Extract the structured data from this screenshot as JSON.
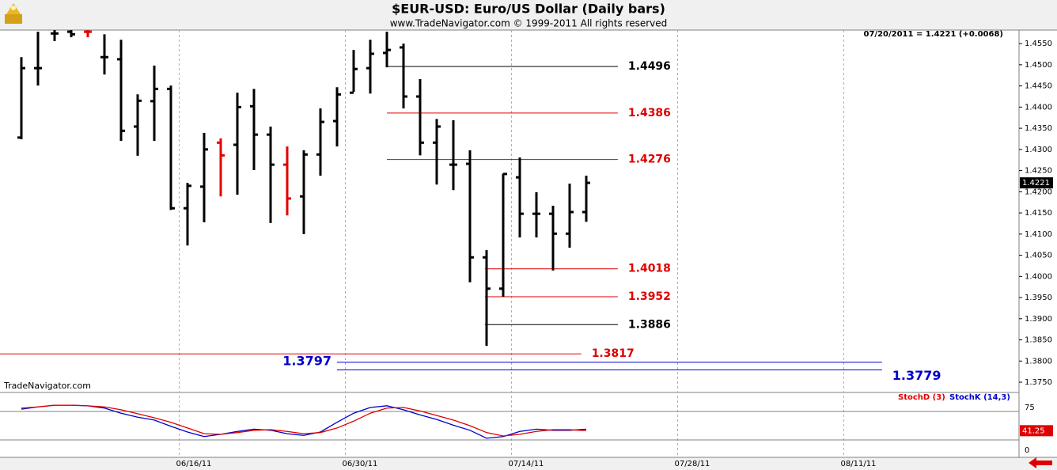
{
  "chart_data": [
    {
      "type": "ohlc",
      "title": "$EUR-USD:  Euro/US Dollar  (Daily bars)",
      "subtitle": "www.TradeNavigator.com © 1999-2011 All rights reserved",
      "info": "07/20/2011 = 1.4221 (+0.0068)",
      "watermark": "TradeNavigator.com",
      "categories": [
        null,
        null,
        null,
        null,
        null,
        null,
        null,
        null,
        null,
        null,
        null,
        null,
        null,
        null,
        null,
        null,
        null,
        null,
        null,
        null,
        null,
        null,
        null,
        null,
        null,
        null,
        null,
        null,
        null,
        null,
        null,
        null,
        null,
        null,
        null
      ],
      "open": [
        1.4328,
        1.4492,
        1.4574,
        1.4578,
        1.4578,
        1.4518,
        1.4513,
        1.4354,
        1.4414,
        1.4443,
        1.4161,
        1.4212,
        1.4316,
        1.4311,
        1.4402,
        1.4335,
        1.4264,
        1.4189,
        1.4288,
        1.4367,
        1.4434,
        1.4492,
        1.4528,
        1.4541,
        1.4425,
        1.4316,
        1.4264,
        1.4266,
        1.4045,
        1.3971,
        1.4234,
        1.4148,
        1.4148,
        1.4101,
        1.4152
      ],
      "high": [
        1.4518,
        1.4578,
        1.4582,
        1.4582,
        1.4582,
        1.4572,
        1.4559,
        1.443,
        1.4498,
        1.4451,
        1.4221,
        1.4339,
        1.4326,
        1.4434,
        1.4443,
        1.4354,
        1.4307,
        1.4298,
        1.4397,
        1.4447,
        1.4535,
        1.4559,
        1.4578,
        1.455,
        1.4466,
        1.4372,
        1.4369,
        1.4298,
        1.4062,
        1.4243,
        1.4281,
        1.4199,
        1.4167,
        1.4219,
        1.4238
      ],
      "low": [
        1.4324,
        1.4451,
        1.4556,
        1.4565,
        1.4565,
        1.4477,
        1.432,
        1.4285,
        1.432,
        1.4157,
        1.4073,
        1.4128,
        1.4189,
        1.4193,
        1.4251,
        1.4126,
        1.4144,
        1.41,
        1.4238,
        1.4307,
        1.4436,
        1.4432,
        1.4494,
        1.4397,
        1.4286,
        1.4217,
        1.4204,
        1.3986,
        1.3836,
        1.3952,
        1.4092,
        1.4092,
        1.4014,
        1.4068,
        1.4129
      ],
      "close": [
        1.4492,
        1.4492,
        1.4574,
        1.4572,
        1.4578,
        1.4518,
        1.4344,
        1.4415,
        1.4443,
        1.4161,
        1.4214,
        1.43,
        1.4286,
        1.44,
        1.4335,
        1.4264,
        1.4184,
        1.4288,
        1.4365,
        1.443,
        1.449,
        1.4526,
        1.4535,
        1.4425,
        1.4316,
        1.4354,
        1.4264,
        1.4045,
        1.3971,
        1.4242,
        1.4148,
        1.4148,
        1.4101,
        1.4152,
        1.4221
      ],
      "bar_colors": [
        "#000000",
        "#000000",
        "#000000",
        "#000000",
        "#e00000",
        "#000000",
        "#000000",
        "#000000",
        "#000000",
        "#000000",
        "#000000",
        "#000000",
        "#e00000",
        "#000000",
        "#000000",
        "#000000",
        "#e00000",
        "#000000",
        "#000000",
        "#000000",
        "#000000",
        "#000000",
        "#000000",
        "#000000",
        "#000000",
        "#000000",
        "#000000",
        "#000000",
        "#000000",
        "#000000",
        "#000000",
        "#000000",
        "#000000",
        "#000000",
        "#000000"
      ],
      "levels": [
        {
          "value": 1.4496,
          "color": "#000000",
          "from": 22,
          "to": 35.9,
          "label_side": "right"
        },
        {
          "value": 1.4386,
          "color": "#e00000",
          "from": 22,
          "to": 35.9,
          "label_side": "right"
        },
        {
          "value": 1.4276,
          "color": "#e00000",
          "from": 22,
          "to": 35.9,
          "label_side": "right"
        },
        {
          "value": 1.4018,
          "color": "#e00000",
          "from": 27.9,
          "to": 35.9,
          "label_side": "right"
        },
        {
          "value": 1.3952,
          "color": "#e00000",
          "from": 27.9,
          "to": 35.9,
          "label_side": "right"
        },
        {
          "value": 1.3886,
          "color": "#000000",
          "from": 27.9,
          "to": 35.9,
          "label_side": "right"
        },
        {
          "value": 1.3817,
          "color": "#e00000",
          "from": -1.3,
          "to": 33.7,
          "label_side": "right"
        },
        {
          "value": 1.3797,
          "color": "#0000cc",
          "from": 19,
          "to": 51.8,
          "label_side": "left"
        },
        {
          "value": 1.3779,
          "color": "#0000cc",
          "from": 19,
          "to": 51.8,
          "label_side": "right"
        }
      ],
      "xticks": [
        {
          "value": 9.5,
          "label": "06/16/11"
        },
        {
          "value": 19.5,
          "label": "06/30/11"
        },
        {
          "value": 29.5,
          "label": "07/14/11"
        },
        {
          "value": 39.5,
          "label": "07/28/11"
        },
        {
          "value": 49.5,
          "label": "08/11/11"
        }
      ],
      "ylim": [
        1.3737,
        1.4582
      ],
      "yticks": [
        {
          "value": 1.375,
          "label": "1.3750"
        },
        {
          "value": 1.38,
          "label": "1.3800"
        },
        {
          "value": 1.385,
          "label": "1.3850"
        },
        {
          "value": 1.39,
          "label": "1.3900"
        },
        {
          "value": 1.395,
          "label": "1.3950"
        },
        {
          "value": 1.4,
          "label": "1.4000"
        },
        {
          "value": 1.405,
          "label": "1.4050"
        },
        {
          "value": 1.41,
          "label": "1.4100"
        },
        {
          "value": 1.415,
          "label": "1.4150"
        },
        {
          "value": 1.42,
          "label": "1.4200"
        },
        {
          "value": 1.425,
          "label": "1.4250"
        },
        {
          "value": 1.43,
          "label": "1.4300"
        },
        {
          "value": 1.435,
          "label": "1.4350"
        },
        {
          "value": 1.44,
          "label": "1.4400"
        },
        {
          "value": 1.445,
          "label": "1.4450"
        },
        {
          "value": 1.45,
          "label": "1.4500"
        },
        {
          "value": 1.455,
          "label": "1.4550"
        }
      ]
    },
    {
      "type": "line",
      "series": [
        {
          "name": "StochD (3)",
          "color": "#e00000",
          "values": [
            81,
            83,
            86,
            86,
            85,
            83,
            78,
            71,
            64,
            56,
            46,
            36,
            35,
            38,
            42,
            43,
            40,
            36,
            38,
            46,
            58,
            72,
            81,
            82,
            76,
            68,
            60,
            50,
            38,
            32,
            35,
            40,
            43,
            43,
            41.25
          ]
        },
        {
          "name": "StochK (14,3)",
          "color": "#0000cc",
          "values": [
            79,
            83,
            86,
            86,
            85,
            81,
            72,
            65,
            60,
            49,
            39,
            31,
            35,
            40,
            44,
            42,
            36,
            33,
            39,
            56,
            72,
            82,
            85,
            78,
            69,
            61,
            51,
            42,
            28,
            31,
            40,
            44,
            42,
            42,
            44
          ]
        }
      ],
      "levels": [
        25,
        75
      ],
      "ylim": [
        -5.5,
        107
      ],
      "yticks": [
        0,
        75
      ]
    }
  ]
}
